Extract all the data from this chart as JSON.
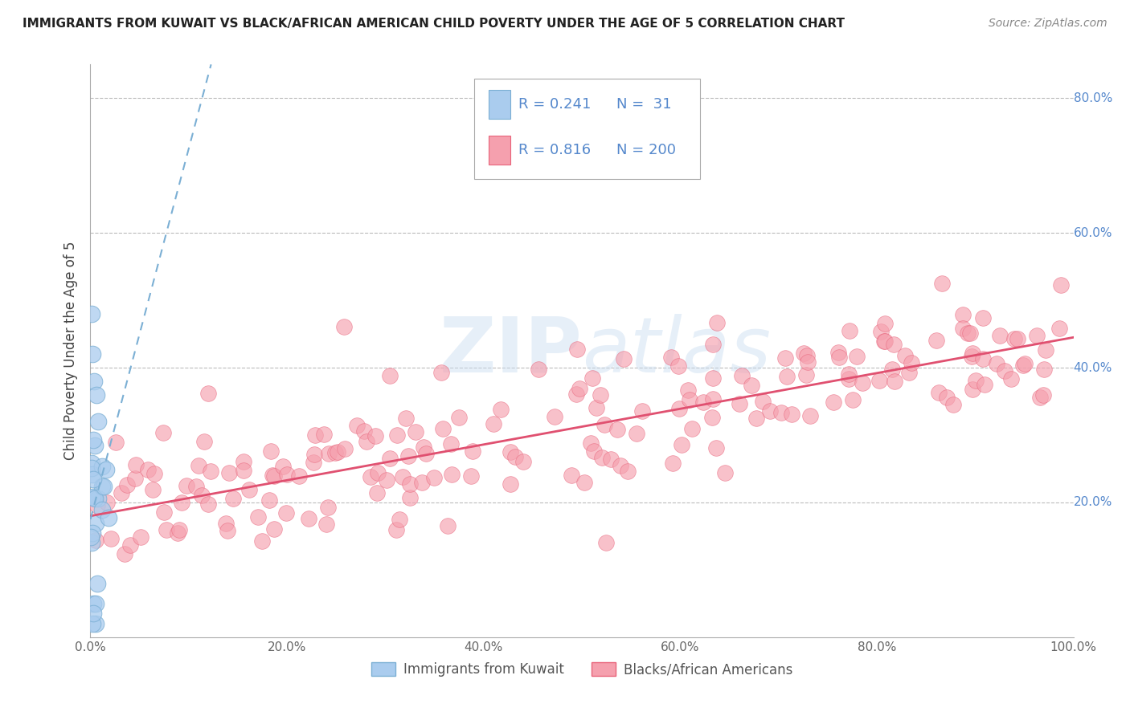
{
  "title": "IMMIGRANTS FROM KUWAIT VS BLACK/AFRICAN AMERICAN CHILD POVERTY UNDER THE AGE OF 5 CORRELATION CHART",
  "source": "Source: ZipAtlas.com",
  "ylabel": "Child Poverty Under the Age of 5",
  "watermark": "ZIPatlas",
  "legend_r1": "R = 0.241",
  "legend_n1": "N =  31",
  "legend_r2": "R = 0.816",
  "legend_n2": "N = 200",
  "color_blue": "#7BAFD4",
  "color_pink": "#E8637A",
  "color_blue_fill": "#AACCEE",
  "color_pink_fill": "#F5A0AE",
  "color_blue_line": "#7BAFD4",
  "color_pink_line": "#E05070",
  "legend_text_color": "#5588CC",
  "background": "#FFFFFF",
  "xlim": [
    0,
    1
  ],
  "ylim": [
    0,
    0.85
  ],
  "yticks": [
    0.0,
    0.2,
    0.4,
    0.6,
    0.8
  ],
  "ytick_labels": [
    "0.0%",
    "20.0%",
    "40.0%",
    "60.0%",
    "80.0%"
  ],
  "xticks": [
    0.0,
    0.2,
    0.4,
    0.6,
    0.8,
    1.0
  ],
  "xtick_labels": [
    "0.0%",
    "20.0%",
    "40.0%",
    "60.0%",
    "80.0%",
    "100.0%"
  ],
  "blue_n": 31,
  "pink_n": 200,
  "legend1_label": "Immigrants from Kuwait",
  "legend2_label": "Blacks/African Americans",
  "pink_slope": 0.265,
  "pink_intercept": 0.18,
  "blue_slope": 5.5,
  "blue_intercept": 0.175
}
